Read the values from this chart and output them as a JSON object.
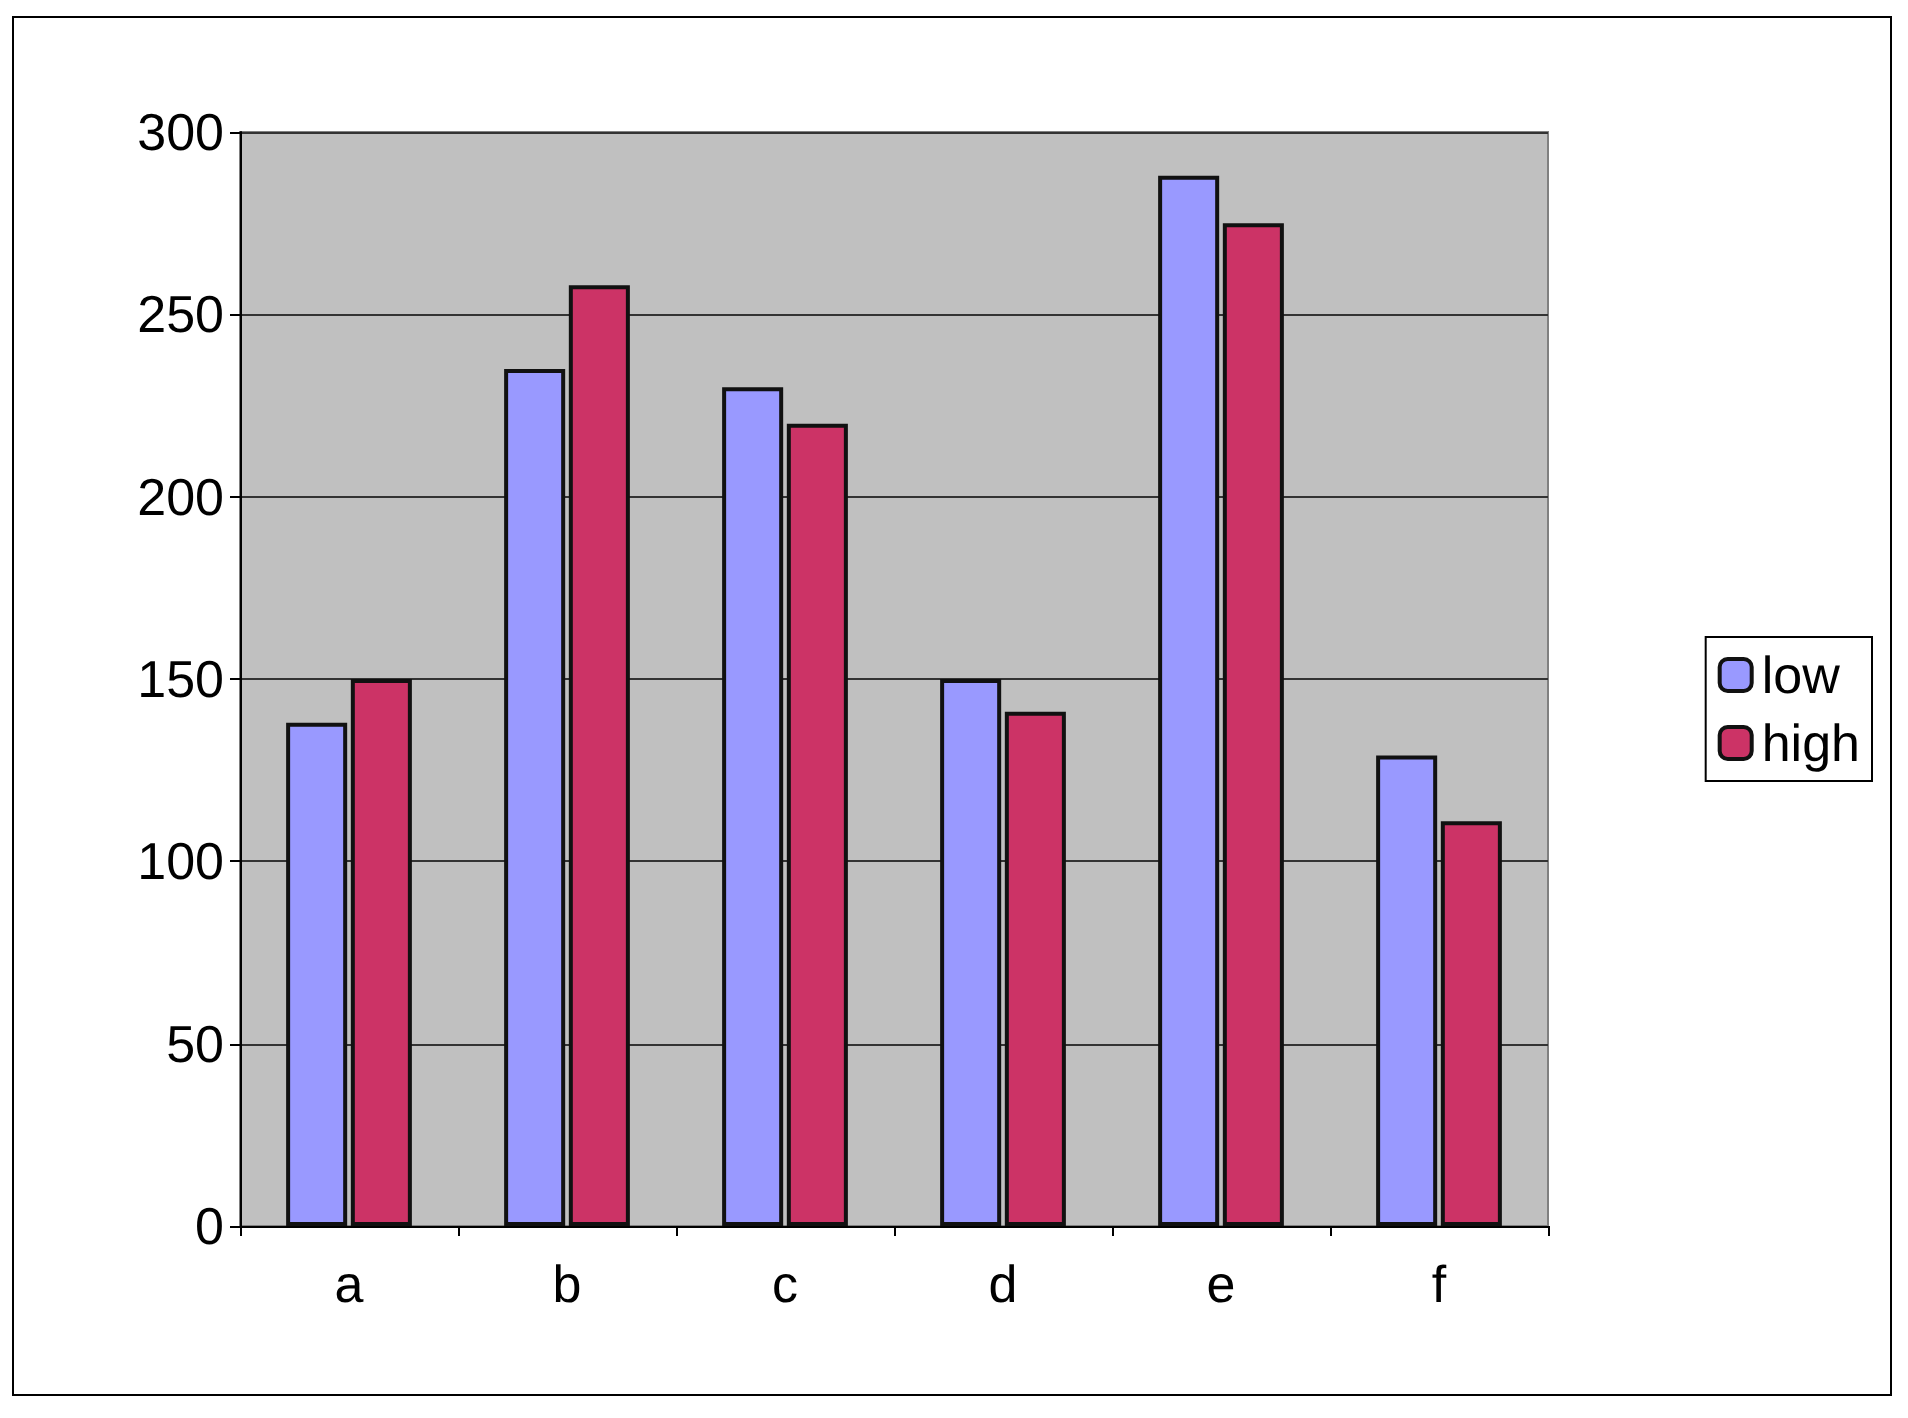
{
  "chart_data": {
    "type": "bar",
    "categories": [
      "a",
      "b",
      "c",
      "d",
      "e",
      "f"
    ],
    "series": [
      {
        "name": "low",
        "color": "#9999ff",
        "values": [
          138,
          235,
          230,
          150,
          288,
          129
        ]
      },
      {
        "name": "high",
        "color": "#cc3366",
        "values": [
          150,
          258,
          220,
          141,
          275,
          111
        ]
      }
    ],
    "ylim": [
      0,
      300
    ],
    "yticks": [
      0,
      50,
      100,
      150,
      200,
      250,
      300
    ],
    "grid": "y",
    "legend": "right"
  }
}
